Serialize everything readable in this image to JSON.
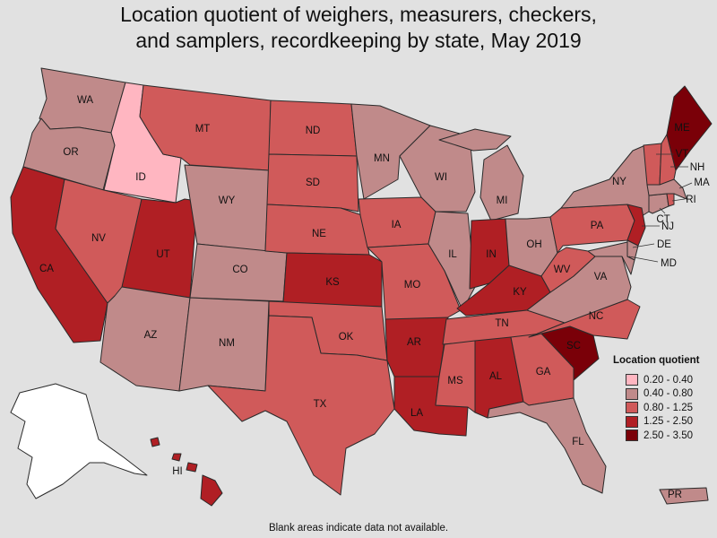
{
  "title_lines": [
    "Location quotient of weighers, measurers, checkers,",
    "and samplers, recordkeeping by state, May 2019"
  ],
  "footnote": "Blank areas indicate data not available.",
  "legend": {
    "title": "Location quotient",
    "items": [
      {
        "label": "0.20 - 0.40",
        "color": "#ffb6c1"
      },
      {
        "label": "0.40 - 0.80",
        "color": "#c08a8a"
      },
      {
        "label": "0.80 - 1.25",
        "color": "#d05a5a"
      },
      {
        "label": "1.25 - 2.50",
        "color": "#b01f24"
      },
      {
        "label": "2.50 - 3.50",
        "color": "#7a0008"
      }
    ]
  },
  "no_data_color": "#ffffff",
  "states": [
    {
      "abbr": "WA",
      "class": 1
    },
    {
      "abbr": "OR",
      "class": 1
    },
    {
      "abbr": "CA",
      "class": 3
    },
    {
      "abbr": "ID",
      "class": 0
    },
    {
      "abbr": "NV",
      "class": 2
    },
    {
      "abbr": "UT",
      "class": 3
    },
    {
      "abbr": "AZ",
      "class": 1
    },
    {
      "abbr": "MT",
      "class": 2
    },
    {
      "abbr": "WY",
      "class": 1
    },
    {
      "abbr": "CO",
      "class": 1
    },
    {
      "abbr": "NM",
      "class": 1
    },
    {
      "abbr": "ND",
      "class": 2
    },
    {
      "abbr": "SD",
      "class": 2
    },
    {
      "abbr": "NE",
      "class": 2
    },
    {
      "abbr": "KS",
      "class": 3
    },
    {
      "abbr": "OK",
      "class": 2
    },
    {
      "abbr": "TX",
      "class": 2
    },
    {
      "abbr": "MN",
      "class": 1
    },
    {
      "abbr": "IA",
      "class": 2
    },
    {
      "abbr": "MO",
      "class": 2
    },
    {
      "abbr": "AR",
      "class": 3
    },
    {
      "abbr": "LA",
      "class": 3
    },
    {
      "abbr": "WI",
      "class": 1
    },
    {
      "abbr": "IL",
      "class": 1
    },
    {
      "abbr": "MI",
      "class": 1
    },
    {
      "abbr": "IN",
      "class": 3
    },
    {
      "abbr": "OH",
      "class": 1
    },
    {
      "abbr": "KY",
      "class": 3
    },
    {
      "abbr": "TN",
      "class": 2
    },
    {
      "abbr": "MS",
      "class": 2
    },
    {
      "abbr": "AL",
      "class": 3
    },
    {
      "abbr": "GA",
      "class": 2
    },
    {
      "abbr": "FL",
      "class": 1
    },
    {
      "abbr": "SC",
      "class": 4
    },
    {
      "abbr": "NC",
      "class": 2
    },
    {
      "abbr": "VA",
      "class": 1
    },
    {
      "abbr": "WV",
      "class": 2
    },
    {
      "abbr": "PA",
      "class": 2
    },
    {
      "abbr": "NY",
      "class": 1
    },
    {
      "abbr": "NJ",
      "class": 3
    },
    {
      "abbr": "DE",
      "class": 1
    },
    {
      "abbr": "MD",
      "class": 1
    },
    {
      "abbr": "CT",
      "class": 1
    },
    {
      "abbr": "RI",
      "class": 2
    },
    {
      "abbr": "MA",
      "class": 1
    },
    {
      "abbr": "VT",
      "class": 2
    },
    {
      "abbr": "NH",
      "class": 2
    },
    {
      "abbr": "ME",
      "class": 4
    },
    {
      "abbr": "AK",
      "class": null
    },
    {
      "abbr": "HI",
      "class": 3
    },
    {
      "abbr": "PR",
      "class": 1
    }
  ]
}
